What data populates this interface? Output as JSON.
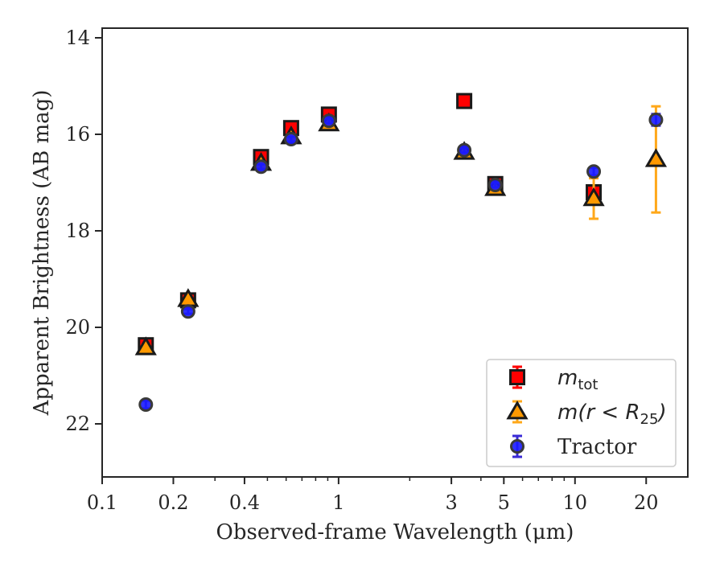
{
  "chart_data": {
    "type": "scatter",
    "xlabel": "Observed-frame Wavelength (μm)",
    "ylabel": "Apparent Brightness (AB mag)",
    "x_scale": "log",
    "y_inverted": true,
    "xlim": [
      0.1,
      30
    ],
    "ylim": [
      23.1,
      13.8
    ],
    "x_ticks": [
      {
        "value": 0.1,
        "label": "0.1"
      },
      {
        "value": 0.2,
        "label": "0.2"
      },
      {
        "value": 0.4,
        "label": "0.4"
      },
      {
        "value": 1,
        "label": "1"
      },
      {
        "value": 3,
        "label": "3"
      },
      {
        "value": 5,
        "label": "5"
      },
      {
        "value": 10,
        "label": "10"
      },
      {
        "value": 20,
        "label": "20"
      }
    ],
    "y_ticks": [
      {
        "value": 14,
        "label": "14"
      },
      {
        "value": 16,
        "label": "16"
      },
      {
        "value": 18,
        "label": "18"
      },
      {
        "value": 20,
        "label": "20"
      },
      {
        "value": 22,
        "label": "22"
      }
    ],
    "grid": false,
    "legend_position": "lower-right",
    "series": [
      {
        "name": "m_tot",
        "legend_label": {
          "main": "m",
          "sub": "tot"
        },
        "marker": "square",
        "face_color": "#ff0000",
        "edge_color": "#1a1a1a",
        "error_color": "#ff0000",
        "points": [
          {
            "x": 0.153,
            "y": 20.37,
            "err": 0.08
          },
          {
            "x": 0.231,
            "y": 19.44,
            "err": 0.05
          },
          {
            "x": 0.47,
            "y": 16.47,
            "err": 0.05
          },
          {
            "x": 0.63,
            "y": 15.87,
            "err": 0.05
          },
          {
            "x": 0.91,
            "y": 15.59,
            "err": 0.05
          },
          {
            "x": 3.4,
            "y": 15.31,
            "err": 0.05
          },
          {
            "x": 4.6,
            "y": 17.03,
            "err": 0.05
          },
          {
            "x": 12.0,
            "y": 17.2,
            "err": 0.08
          }
        ]
      },
      {
        "name": "m(r < R_25)",
        "legend_label": {
          "main": "m(r < R",
          "sub": "25",
          "close": ")"
        },
        "marker": "triangle",
        "face_color": "#ff9900",
        "edge_color": "#1a1a1a",
        "error_color": "#ffa81a",
        "points": [
          {
            "x": 0.153,
            "y": 20.42,
            "err": 0.05
          },
          {
            "x": 0.231,
            "y": 19.42,
            "err": 0.05
          },
          {
            "x": 0.47,
            "y": 16.6,
            "err": 0.05
          },
          {
            "x": 0.63,
            "y": 16.05,
            "err": 0.05
          },
          {
            "x": 0.91,
            "y": 15.78,
            "err": 0.05
          },
          {
            "x": 3.4,
            "y": 16.37,
            "err": 0.05
          },
          {
            "x": 4.6,
            "y": 17.12,
            "err": 0.05
          },
          {
            "x": 12.0,
            "y": 17.33,
            "err": 0.42
          },
          {
            "x": 22.0,
            "y": 16.52,
            "err": 1.1
          }
        ]
      },
      {
        "name": "Tractor",
        "legend_label": {
          "main": "Tractor"
        },
        "marker": "circle",
        "face_color": "#1a1aff",
        "edge_color": "#3a3a3a",
        "error_color": "#3a2ad6",
        "points": [
          {
            "x": 0.153,
            "y": 21.6,
            "err": 0.08
          },
          {
            "x": 0.231,
            "y": 19.67,
            "err": 0.05
          },
          {
            "x": 0.47,
            "y": 16.67,
            "err": 0.05
          },
          {
            "x": 0.63,
            "y": 16.1,
            "err": 0.05
          },
          {
            "x": 0.91,
            "y": 15.72,
            "err": 0.05
          },
          {
            "x": 3.4,
            "y": 16.33,
            "err": 0.05
          },
          {
            "x": 4.6,
            "y": 17.05,
            "err": 0.05
          },
          {
            "x": 12.0,
            "y": 16.77,
            "err": 0.08
          },
          {
            "x": 22.0,
            "y": 15.7,
            "err": 0.12
          }
        ]
      }
    ]
  }
}
